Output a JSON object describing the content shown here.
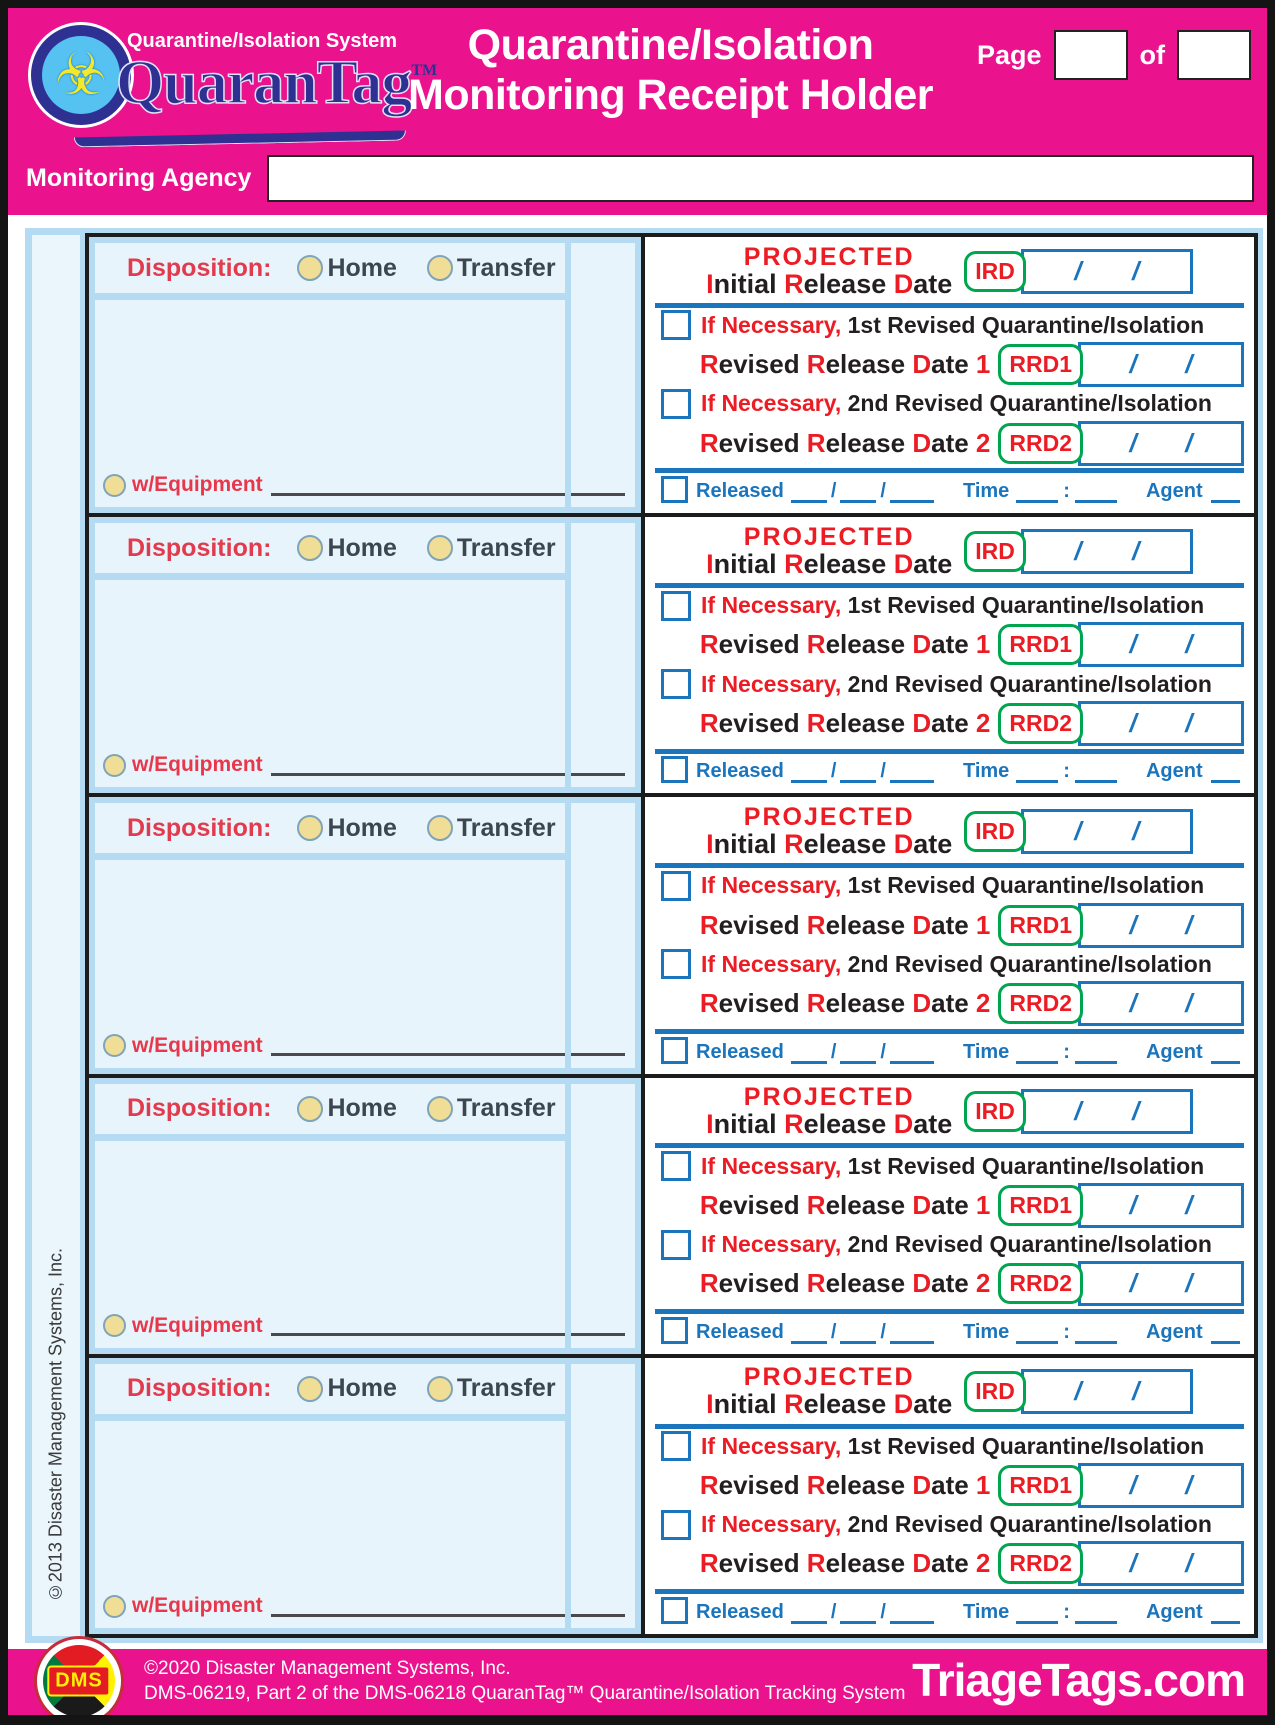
{
  "colors": {
    "pink": "#EB128D",
    "blue": "#1B75BC",
    "green": "#00A550",
    "red": "#EC1C24",
    "logo_blue": "#2E3192",
    "panel_light_blue": "#E8F4FC",
    "container_blue": "#B5DBF2",
    "radio_yellow": "#F0DE96"
  },
  "header": {
    "system_label": "Quarantine/Isolation System",
    "brand": "QuaranTag",
    "brand_tm": "TM",
    "biohazard_glyph": "☣",
    "title_line1": "Quarantine/Isolation",
    "title_line2": "Monitoring Receipt Holder",
    "page_label": "Page",
    "of_label": "of",
    "page_value": "",
    "page_total": "",
    "monitoring_agency_label": "Monitoring Agency",
    "monitoring_agency_value": ""
  },
  "sidebar": {
    "copyright": "©2013 Disaster Management Systems, Inc."
  },
  "sections_count": 5,
  "section": {
    "disposition_label": "Disposition:",
    "home_label": "Home",
    "transfer_label": "Transfer",
    "w_equipment_label": "w/Equipment",
    "projected_label": "PROJECTED",
    "ird_title": [
      {
        "t": "I",
        "red": true
      },
      {
        "t": "nitial "
      },
      {
        "t": "R",
        "red": true
      },
      {
        "t": "elease "
      },
      {
        "t": "D",
        "red": true
      },
      {
        "t": "ate"
      }
    ],
    "ird_code": "IRD",
    "if_necessary_1": [
      {
        "t": "If Necessary, ",
        "red": true
      },
      {
        "t": "1st Revised Quarantine/Isolation"
      }
    ],
    "rrd1_title": [
      {
        "t": "R",
        "red": true
      },
      {
        "t": "evised "
      },
      {
        "t": "R",
        "red": true
      },
      {
        "t": "elease "
      },
      {
        "t": "D",
        "red": true
      },
      {
        "t": "ate"
      },
      {
        "t": " 1",
        "red": true
      }
    ],
    "rrd1_code": "RRD1",
    "if_necessary_2": [
      {
        "t": "If Necessary, ",
        "red": true
      },
      {
        "t": "2nd Revised Quarantine/Isolation"
      }
    ],
    "rrd2_title": [
      {
        "t": "R",
        "red": true
      },
      {
        "t": "evised "
      },
      {
        "t": "R",
        "red": true
      },
      {
        "t": "elease "
      },
      {
        "t": "D",
        "red": true
      },
      {
        "t": "ate"
      },
      {
        "t": " 2",
        "red": true
      }
    ],
    "rrd2_code": "RRD2",
    "date_separator": "/",
    "released_label": "Released",
    "time_label": "Time",
    "colon": ":",
    "agent_label": "Agent"
  },
  "footer": {
    "dms_acronym": "DMS",
    "copyright_line1": "©2020 Disaster Management Systems, Inc.",
    "product_line2": "DMS-06219, Part 2 of the DMS-06218 QuaranTag™ Quarantine/Isolation Tracking System",
    "website": "TriageTags.com"
  }
}
